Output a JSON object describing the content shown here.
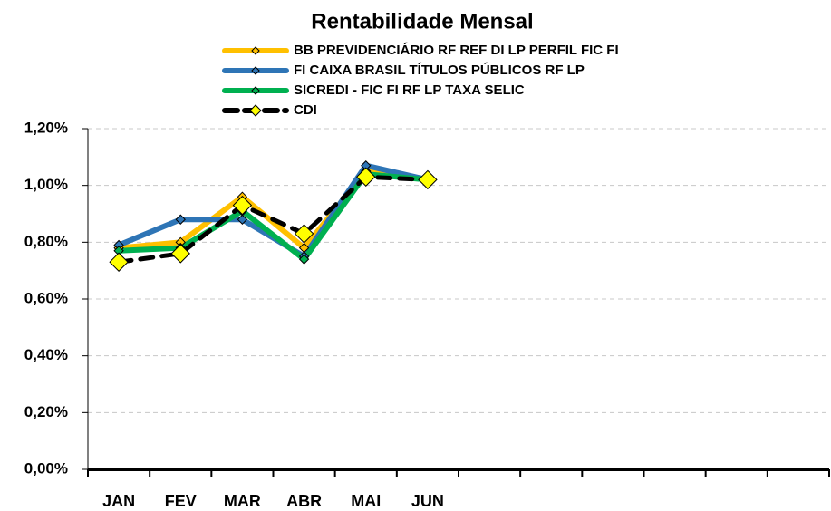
{
  "chart_data": {
    "type": "line",
    "title": "Rentabilidade Mensal",
    "categories": [
      "JAN",
      "FEV",
      "MAR",
      "ABR",
      "MAI",
      "JUN",
      null,
      null,
      null,
      null,
      null,
      null
    ],
    "series": [
      {
        "name": "BB PREVIDENCIÁRIO RF REF DI LP PERFIL FIC FI",
        "color": "#ffc000",
        "marker_color": "#ffc000",
        "line_style": "solid",
        "values": [
          0.78,
          0.8,
          0.96,
          0.78,
          1.05,
          1.02,
          null,
          null,
          null,
          null,
          null,
          null
        ]
      },
      {
        "name": "FI CAIXA BRASIL TÍTULOS PÚBLICOS RF LP",
        "color": "#2e75b6",
        "marker_color": "#2e75b6",
        "line_style": "solid",
        "values": [
          0.79,
          0.88,
          0.88,
          0.75,
          1.07,
          1.02,
          null,
          null,
          null,
          null,
          null,
          null
        ]
      },
      {
        "name": "SICREDI - FIC FI RF LP TAXA SELIC",
        "color": "#00b050",
        "marker_color": "#00b050",
        "line_style": "solid",
        "values": [
          0.77,
          0.78,
          0.91,
          0.74,
          1.04,
          1.02,
          null,
          null,
          null,
          null,
          null,
          null
        ]
      },
      {
        "name": "CDI",
        "color": "#000000",
        "marker_color": "#ffff00",
        "line_style": "dotted",
        "values": [
          0.73,
          0.76,
          0.93,
          0.83,
          1.03,
          1.02,
          null,
          null,
          null,
          null,
          null,
          null
        ]
      }
    ],
    "ylim": [
      0,
      1.2
    ],
    "yticks": [
      {
        "value": 0,
        "label": "0,00%"
      },
      {
        "value": 0.2,
        "label": "0,20%"
      },
      {
        "value": 0.4,
        "label": "0,40%"
      },
      {
        "value": 0.6,
        "label": "0,60%"
      },
      {
        "value": 0.8,
        "label": "0,80%"
      },
      {
        "value": 1.0,
        "label": "1,00%"
      },
      {
        "value": 1.2,
        "label": "1,20%"
      }
    ],
    "grid": true
  }
}
